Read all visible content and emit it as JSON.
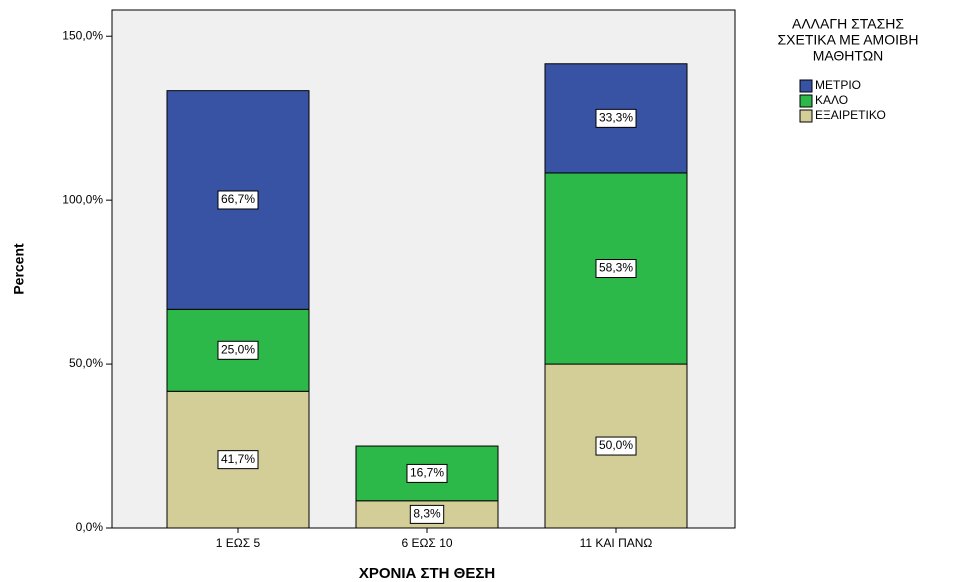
{
  "chart_data": {
    "type": "stacked_bar",
    "x_label": "ΧΡΟΝΙΑ ΣΤΗ ΘΕΣΗ",
    "y_label": "Percent",
    "legend_title": [
      "ΑΛΛΑΓΗ ΣΤΑΣΗΣ",
      "ΣΧΕΤΙΚΑ ΜΕ ΑΜΟΙΒΗ",
      "ΜΑΘΗΤΩΝ"
    ],
    "legend": "right",
    "categories": [
      "1 ΕΩΣ 5",
      "6 ΕΩΣ 10",
      "11 ΚΑΙ ΠΑΝΩ"
    ],
    "series": [
      {
        "name": "ΕΞΑΙΡΕΤΙΚΟ",
        "color": "#d3ce97",
        "values": [
          41.7,
          8.3,
          50.0
        ],
        "value_labels": [
          "41,7%",
          "8,3%",
          "50,0%"
        ]
      },
      {
        "name": "ΚΑΛΟ",
        "color": "#2db84a",
        "values": [
          25.0,
          16.7,
          58.3
        ],
        "value_labels": [
          "25,0%",
          "16,7%",
          "58,3%"
        ]
      },
      {
        "name": "ΜΕΤΡΙΟ",
        "color": "#3953a4",
        "values": [
          66.7,
          null,
          33.3
        ],
        "value_labels": [
          "66,7%",
          null,
          "33,3%"
        ]
      }
    ],
    "ylim": [
      0,
      158
    ],
    "yticks": [
      {
        "value": 0,
        "label": "0,0%"
      },
      {
        "value": 50,
        "label": "50,0%"
      },
      {
        "value": 100,
        "label": "100,0%"
      },
      {
        "value": 150,
        "label": "150,0%"
      }
    ]
  }
}
